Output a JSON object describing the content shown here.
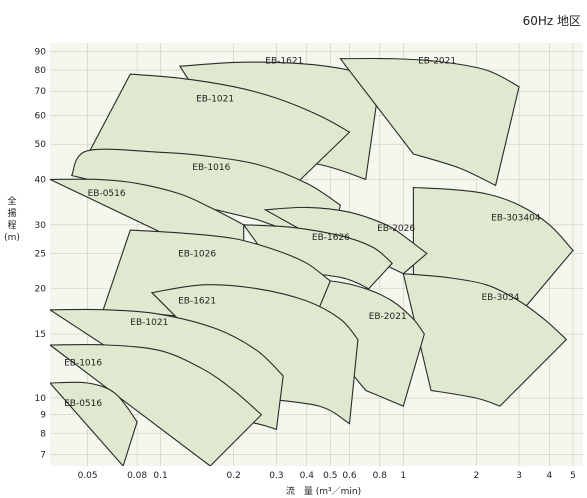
{
  "heading": "60Hz 地区",
  "chart_data": {
    "type": "area",
    "x_scale": "log",
    "y_scale": "log",
    "xlabel_line1": "流　量",
    "xlabel_unit": "(m³／min)",
    "ylabel": "全\n揚\n程\n(m)",
    "xlim": [
      0.035,
      5.5
    ],
    "ylim": [
      6.5,
      95
    ],
    "x_ticks": [
      {
        "v": 0.05,
        "label": "0.05"
      },
      {
        "v": 0.08,
        "label": "0.08"
      },
      {
        "v": 0.1,
        "label": "0.1"
      },
      {
        "v": 0.2,
        "label": "0.2"
      },
      {
        "v": 0.3,
        "label": "0.3"
      },
      {
        "v": 0.4,
        "label": "0.4"
      },
      {
        "v": 0.5,
        "label": "0.5"
      },
      {
        "v": 0.6,
        "label": "0.6"
      },
      {
        "v": 0.8,
        "label": "0.8"
      },
      {
        "v": 1,
        "label": "1"
      },
      {
        "v": 2,
        "label": "2"
      },
      {
        "v": 3,
        "label": "3"
      },
      {
        "v": 4,
        "label": "4"
      },
      {
        "v": 5,
        "label": "5"
      }
    ],
    "y_ticks": [
      {
        "v": 7,
        "label": "7"
      },
      {
        "v": 8,
        "label": "8"
      },
      {
        "v": 9,
        "label": "9"
      },
      {
        "v": 10,
        "label": "10"
      },
      {
        "v": 15,
        "label": "15"
      },
      {
        "v": 20,
        "label": "20"
      },
      {
        "v": 25,
        "label": "25"
      },
      {
        "v": 30,
        "label": "30"
      },
      {
        "v": 40,
        "label": "40"
      },
      {
        "v": 50,
        "label": "50"
      },
      {
        "v": 60,
        "label": "60"
      },
      {
        "v": 70,
        "label": "70"
      },
      {
        "v": 80,
        "label": "80"
      },
      {
        "v": 90,
        "label": "90"
      }
    ],
    "grid": true,
    "regions": [
      {
        "label": "EB-1621",
        "label_at": [
          0.27,
          83.5
        ],
        "top": [
          [
            0.12,
            82
          ],
          [
            0.2,
            84
          ],
          [
            0.3,
            84
          ],
          [
            0.45,
            82.5
          ],
          [
            0.65,
            79
          ],
          [
            0.8,
            75
          ]
        ],
        "bottom": [
          [
            0.2,
            48
          ],
          [
            0.45,
            44
          ],
          [
            0.7,
            40
          ]
        ]
      },
      {
        "label": "EB-2021",
        "label_at": [
          1.15,
          83.5
        ],
        "top": [
          [
            0.55,
            86
          ],
          [
            0.9,
            86
          ],
          [
            1.4,
            84.5
          ],
          [
            2.2,
            80
          ],
          [
            3.0,
            72
          ]
        ],
        "bottom": [
          [
            1.1,
            47
          ],
          [
            1.7,
            43
          ],
          [
            2.4,
            38.5
          ]
        ]
      },
      {
        "label": "EB-1021",
        "label_at": [
          0.14,
          65.5
        ],
        "top": [
          [
            0.075,
            78
          ],
          [
            0.12,
            76
          ],
          [
            0.2,
            72
          ],
          [
            0.3,
            67
          ],
          [
            0.45,
            60
          ],
          [
            0.6,
            54
          ]
        ],
        "bottom": [
          [
            0.046,
            42
          ],
          [
            0.1,
            40
          ],
          [
            0.2,
            37
          ],
          [
            0.3,
            34.5
          ]
        ]
      },
      {
        "label": "EB-1016",
        "label_at": [
          0.135,
          42.5
        ],
        "top": [
          [
            0.043,
            41
          ],
          [
            0.05,
            48
          ],
          [
            0.1,
            47.5
          ],
          [
            0.15,
            46.5
          ],
          [
            0.25,
            44
          ],
          [
            0.4,
            39
          ],
          [
            0.55,
            34
          ]
        ],
        "bottom": [
          [
            0.25,
            31
          ],
          [
            0.38,
            28
          ],
          [
            0.5,
            25.5
          ]
        ]
      },
      {
        "label": "EB-0516",
        "label_at": [
          0.05,
          36
        ],
        "top": [
          [
            0.035,
            40
          ],
          [
            0.055,
            40
          ],
          [
            0.08,
            39
          ],
          [
            0.12,
            36.5
          ],
          [
            0.16,
            33.5
          ],
          [
            0.22,
            30
          ]
        ],
        "bottom": [
          [
            0.12,
            27
          ],
          [
            0.18,
            25
          ],
          [
            0.22,
            24.2
          ]
        ]
      },
      {
        "label": "EB-303404",
        "label_at": [
          2.3,
          30.8
        ],
        "top": [
          [
            1.1,
            38
          ],
          [
            1.6,
            37.5
          ],
          [
            2.2,
            36.5
          ],
          [
            3.0,
            34
          ],
          [
            4.0,
            30
          ],
          [
            5.0,
            25.5
          ]
        ],
        "bottom": [
          [
            1.1,
            20.5
          ],
          [
            2.0,
            19
          ],
          [
            3.0,
            17
          ]
        ]
      },
      {
        "label": "EB-2026",
        "label_at": [
          0.78,
          28.8
        ],
        "top": [
          [
            0.27,
            33
          ],
          [
            0.4,
            33.5
          ],
          [
            0.6,
            32.5
          ],
          [
            0.85,
            30
          ],
          [
            1.0,
            28
          ],
          [
            1.25,
            25
          ]
        ],
        "bottom": [
          [
            0.6,
            24.5
          ],
          [
            0.8,
            23.5
          ],
          [
            1.0,
            22
          ]
        ]
      },
      {
        "label": "EB-1626",
        "label_at": [
          0.42,
          27.2
        ],
        "top": [
          [
            0.22,
            30
          ],
          [
            0.35,
            29.5
          ],
          [
            0.55,
            28
          ],
          [
            0.75,
            26
          ],
          [
            0.9,
            23.5
          ]
        ],
        "bottom": [
          [
            0.3,
            22.5
          ],
          [
            0.55,
            21.5
          ],
          [
            0.72,
            20
          ]
        ]
      },
      {
        "label": "EB-3034",
        "label_at": [
          2.1,
          18.6
        ],
        "top": [
          [
            1.0,
            22
          ],
          [
            1.5,
            21.5
          ],
          [
            2.2,
            20.5
          ],
          [
            3.0,
            18.5
          ],
          [
            3.8,
            16.5
          ],
          [
            4.7,
            14.5
          ]
        ],
        "bottom": [
          [
            1.3,
            10.5
          ],
          [
            2.0,
            10
          ],
          [
            2.5,
            9.5
          ]
        ]
      },
      {
        "label": "EB-2021",
        "label_at": [
          0.72,
          16.5
        ],
        "top": [
          [
            0.3,
            21
          ],
          [
            0.5,
            21
          ],
          [
            0.7,
            20
          ],
          [
            0.9,
            18.5
          ],
          [
            1.1,
            16.5
          ],
          [
            1.22,
            15
          ]
        ],
        "bottom": [
          [
            0.7,
            10.5
          ],
          [
            1.0,
            9.5
          ]
        ]
      },
      {
        "label": "EB-1026",
        "label_at": [
          0.118,
          24.5
        ],
        "top": [
          [
            0.075,
            29
          ],
          [
            0.12,
            28.5
          ],
          [
            0.2,
            27.5
          ],
          [
            0.3,
            25.5
          ],
          [
            0.4,
            23.5
          ],
          [
            0.5,
            21
          ]
        ],
        "bottom": [
          [
            0.058,
            17.5
          ],
          [
            0.15,
            16.5
          ],
          [
            0.28,
            15
          ],
          [
            0.38,
            13.5
          ]
        ]
      },
      {
        "label": "EB-1621",
        "label_at": [
          0.118,
          18.2
        ],
        "top": [
          [
            0.092,
            19.5
          ],
          [
            0.15,
            20.5
          ],
          [
            0.25,
            20
          ],
          [
            0.4,
            18.5
          ],
          [
            0.55,
            16.5
          ],
          [
            0.65,
            14.5
          ]
        ],
        "bottom": [
          [
            0.25,
            10
          ],
          [
            0.45,
            9.5
          ],
          [
            0.6,
            8.5
          ]
        ]
      },
      {
        "label": "EB-1021",
        "label_at": [
          0.075,
          15.9
        ],
        "top": [
          [
            0.035,
            17.5
          ],
          [
            0.06,
            17.5
          ],
          [
            0.1,
            17
          ],
          [
            0.17,
            15.5
          ],
          [
            0.25,
            13.5
          ],
          [
            0.32,
            11.5
          ]
        ],
        "bottom": [
          [
            0.16,
            9
          ],
          [
            0.25,
            8.5
          ],
          [
            0.3,
            8.2
          ]
        ]
      },
      {
        "label": "EB-1016",
        "label_at": [
          0.04,
          12.3
        ],
        "top": [
          [
            0.035,
            14
          ],
          [
            0.06,
            14
          ],
          [
            0.1,
            13.5
          ],
          [
            0.15,
            12
          ],
          [
            0.2,
            10.5
          ],
          [
            0.26,
            9
          ]
        ],
        "bottom": [
          [
            0.16,
            6.5
          ]
        ]
      },
      {
        "label": "EB-0516",
        "label_at": [
          0.04,
          9.5
        ],
        "top": [
          [
            0.035,
            11
          ],
          [
            0.05,
            11
          ],
          [
            0.065,
            10.3
          ],
          [
            0.08,
            8.6
          ]
        ],
        "bottom": [
          [
            0.07,
            6.5
          ]
        ]
      }
    ]
  }
}
